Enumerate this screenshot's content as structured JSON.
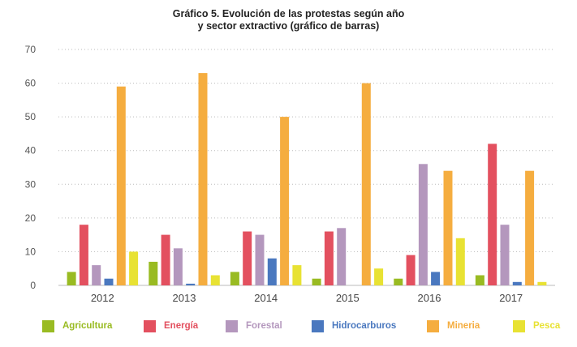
{
  "chart_data": {
    "type": "bar",
    "title": "Gráfico 5. Evolución de las protestas según año",
    "subtitle": "y sector extractivo (gráfico de barras)",
    "categories": [
      "2012",
      "2013",
      "2014",
      "2015",
      "2016",
      "2017"
    ],
    "yticks": [
      "0",
      "10",
      "20",
      "30",
      "40",
      "50",
      "60",
      "70"
    ],
    "ylim": [
      0,
      70
    ],
    "grid": "horizontal-dotted",
    "legend_position": "bottom",
    "series": [
      {
        "name": "Agricultura",
        "color": "#99bb22",
        "values": [
          4,
          7,
          4,
          2,
          2,
          3
        ]
      },
      {
        "name": "Energía",
        "color": "#e3505f",
        "values": [
          18,
          15,
          16,
          16,
          9,
          42
        ]
      },
      {
        "name": "Forestal",
        "color": "#b497bd",
        "values": [
          6,
          11,
          15,
          17,
          36,
          18
        ]
      },
      {
        "name": "Hidrocarburos",
        "color": "#4a78bf",
        "values": [
          2,
          0.5,
          8,
          0,
          4,
          1
        ]
      },
      {
        "name": "Mineria",
        "color": "#f5ad3f",
        "values": [
          59,
          63,
          50,
          60,
          34,
          34
        ]
      },
      {
        "name": "Pesca",
        "color": "#e8e233",
        "values": [
          10,
          3,
          6,
          5,
          14,
          1
        ]
      }
    ]
  }
}
